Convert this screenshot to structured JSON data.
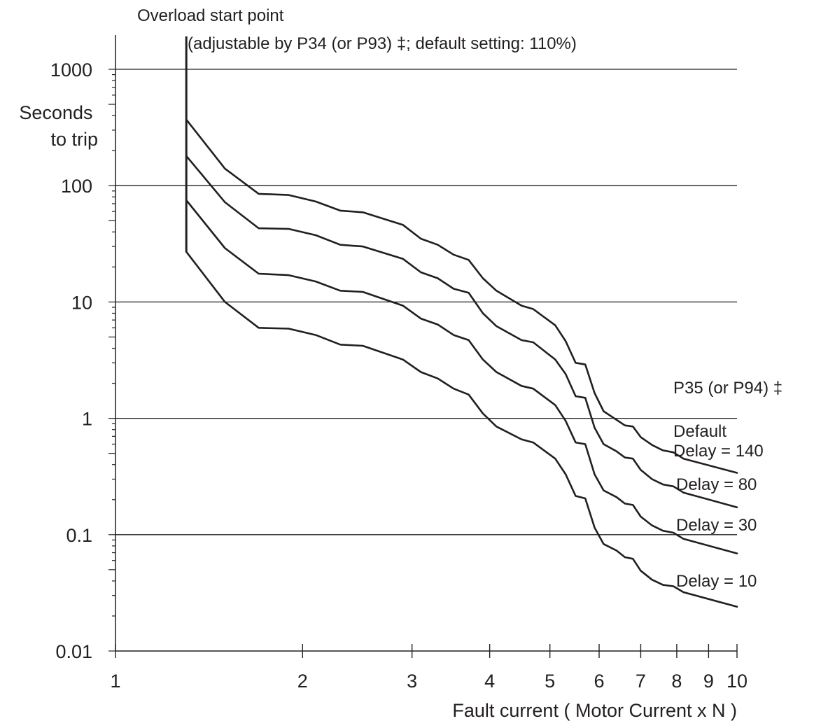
{
  "chart_data": {
    "type": "line",
    "title": "",
    "xlabel": "Fault current ( Motor Current x N )",
    "ylabel": "Seconds to trip",
    "x_scale": "log",
    "y_scale": "log",
    "xlim": [
      1,
      10
    ],
    "ylim": [
      0.01,
      2000
    ],
    "grid": "horizontal",
    "x_ticks": [
      "1",
      "2",
      "3",
      "4",
      "5",
      "6",
      "7",
      "8",
      "9",
      "10"
    ],
    "y_ticks": [
      "0.01",
      "0.1",
      "1",
      "10",
      "100",
      "1000"
    ],
    "overload_start": {
      "x": 1.3,
      "label_line1": "Overload start point",
      "label_line2": "(adjustable by P34 (or P93) ‡; default setting: 110%)"
    },
    "legend_title": "P35 (or P94) ‡",
    "default_note": "Default",
    "colors": {
      "line": "#231f20",
      "grid": "#231f20"
    },
    "series": [
      {
        "name": "Delay = 140",
        "x": [
          1.3,
          1.5,
          1.7,
          1.9,
          2.1,
          2.3,
          2.5,
          2.9,
          3.1,
          3.3,
          3.5,
          3.7,
          3.9,
          4.1,
          4.5,
          4.7,
          5.1,
          5.3,
          5.5,
          5.7,
          5.9,
          6.1,
          6.4,
          6.6,
          6.8,
          7.0,
          7.3,
          7.6,
          7.9,
          8.2,
          10.0
        ],
        "y": [
          370,
          140,
          85,
          83,
          73,
          61,
          59,
          46,
          35,
          31,
          25.5,
          23,
          16,
          12.5,
          9.3,
          8.7,
          6.3,
          4.6,
          3.0,
          2.9,
          1.65,
          1.15,
          0.97,
          0.87,
          0.85,
          0.69,
          0.59,
          0.53,
          0.51,
          0.45,
          0.34
        ]
      },
      {
        "name": "Delay = 80",
        "x": [
          1.3,
          1.5,
          1.7,
          1.9,
          2.1,
          2.3,
          2.5,
          2.9,
          3.1,
          3.3,
          3.5,
          3.7,
          3.9,
          4.1,
          4.5,
          4.7,
          5.1,
          5.3,
          5.5,
          5.7,
          5.9,
          6.1,
          6.4,
          6.6,
          6.8,
          7.0,
          7.3,
          7.6,
          7.9,
          8.2,
          10.0
        ],
        "y": [
          180,
          72,
          43,
          42.5,
          37.5,
          31,
          30,
          23.5,
          18,
          16,
          13,
          12,
          8,
          6.2,
          4.7,
          4.5,
          3.2,
          2.4,
          1.55,
          1.5,
          0.83,
          0.6,
          0.52,
          0.46,
          0.45,
          0.36,
          0.3,
          0.27,
          0.26,
          0.23,
          0.172
        ]
      },
      {
        "name": "Delay = 30",
        "x": [
          1.3,
          1.5,
          1.7,
          1.9,
          2.1,
          2.3,
          2.5,
          2.9,
          3.1,
          3.3,
          3.5,
          3.7,
          3.9,
          4.1,
          4.5,
          4.7,
          5.1,
          5.3,
          5.5,
          5.7,
          5.9,
          6.1,
          6.4,
          6.6,
          6.8,
          7.0,
          7.3,
          7.6,
          7.9,
          8.2,
          10.0
        ],
        "y": [
          75,
          29,
          17.5,
          17,
          15,
          12.5,
          12.2,
          9.3,
          7.2,
          6.4,
          5.2,
          4.7,
          3.2,
          2.5,
          1.9,
          1.8,
          1.3,
          0.95,
          0.62,
          0.6,
          0.33,
          0.24,
          0.21,
          0.185,
          0.18,
          0.143,
          0.12,
          0.108,
          0.104,
          0.092,
          0.069
        ]
      },
      {
        "name": "Delay = 10",
        "x": [
          1.3,
          1.5,
          1.7,
          1.9,
          2.1,
          2.3,
          2.5,
          2.9,
          3.1,
          3.3,
          3.5,
          3.7,
          3.9,
          4.1,
          4.5,
          4.7,
          5.1,
          5.3,
          5.5,
          5.7,
          5.9,
          6.1,
          6.4,
          6.6,
          6.8,
          7.0,
          7.3,
          7.6,
          7.9,
          8.2,
          10.0
        ],
        "y": [
          27,
          10,
          6,
          5.9,
          5.2,
          4.3,
          4.2,
          3.2,
          2.5,
          2.2,
          1.8,
          1.6,
          1.1,
          0.85,
          0.66,
          0.62,
          0.45,
          0.33,
          0.215,
          0.205,
          0.115,
          0.083,
          0.073,
          0.064,
          0.062,
          0.049,
          0.041,
          0.037,
          0.036,
          0.032,
          0.024
        ]
      }
    ]
  }
}
